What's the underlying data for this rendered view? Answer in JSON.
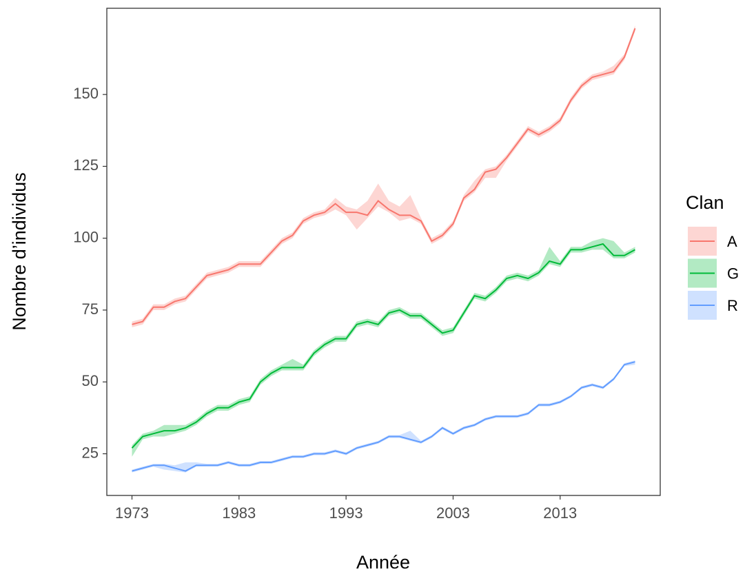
{
  "chart_data": {
    "type": "line_ribbon",
    "x_label": "Année",
    "y_label": "Nombre d’individus",
    "legend_title": "Clan",
    "legend_position": "right",
    "x": [
      1973,
      1974,
      1975,
      1976,
      1977,
      1978,
      1979,
      1980,
      1981,
      1982,
      1983,
      1984,
      1985,
      1986,
      1987,
      1988,
      1989,
      1990,
      1991,
      1992,
      1993,
      1994,
      1995,
      1996,
      1997,
      1998,
      1999,
      2000,
      2001,
      2002,
      2003,
      2004,
      2005,
      2006,
      2007,
      2008,
      2009,
      2010,
      2011,
      2012,
      2013,
      2014,
      2015,
      2016,
      2017,
      2018,
      2019,
      2020
    ],
    "xlim": [
      1970.65,
      2022.35
    ],
    "xticks": [
      1973,
      1983,
      1993,
      2003,
      2013
    ],
    "ylim": [
      10.5,
      180
    ],
    "yticks": [
      25,
      50,
      75,
      100,
      125,
      150
    ],
    "grid": false,
    "series": [
      {
        "name": "A",
        "color": "#F8766D",
        "values": [
          70,
          71,
          76,
          76,
          78,
          79,
          83,
          87,
          88,
          89,
          91,
          91,
          91,
          95,
          99,
          101,
          106,
          108,
          109,
          112,
          109,
          109,
          108,
          113,
          110,
          108,
          108,
          106,
          99,
          101,
          105,
          114,
          117,
          123,
          124,
          128,
          133,
          138,
          136,
          138,
          141,
          148,
          153,
          156,
          157,
          158,
          163,
          173
        ],
        "lower": [
          69,
          70,
          75,
          75,
          77,
          78,
          82,
          86,
          87,
          88,
          90,
          90,
          90,
          94,
          98,
          100,
          105,
          107,
          108,
          110,
          108,
          103,
          107,
          111,
          109,
          106,
          107,
          105,
          98,
          100,
          104,
          113,
          116,
          121,
          121,
          127,
          132,
          137,
          135,
          137,
          140,
          147,
          152,
          155,
          156,
          157,
          162,
          172
        ],
        "upper": [
          71,
          72,
          77,
          77,
          79,
          80,
          84,
          88,
          89,
          90,
          92,
          92,
          92,
          96,
          100,
          102,
          107,
          109,
          110,
          114,
          111,
          110,
          113,
          119,
          113,
          111,
          115,
          107,
          100,
          102,
          106,
          115,
          120,
          124,
          125,
          129,
          134,
          139,
          137,
          139,
          142,
          149,
          154,
          157,
          158,
          160,
          164,
          174
        ]
      },
      {
        "name": "G",
        "color": "#00BA38",
        "values": [
          27,
          31,
          32,
          33,
          33,
          34,
          36,
          39,
          41,
          41,
          43,
          44,
          50,
          53,
          55,
          55,
          55,
          60,
          63,
          65,
          65,
          70,
          71,
          70,
          74,
          75,
          73,
          73,
          70,
          67,
          68,
          74,
          80,
          79,
          82,
          86,
          87,
          86,
          88,
          92,
          91,
          96,
          96,
          97,
          98,
          94,
          94,
          96
        ],
        "lower": [
          24,
          30,
          31,
          31,
          32,
          33,
          35,
          38,
          40,
          40,
          42,
          43,
          49,
          52,
          54,
          54,
          54,
          59,
          62,
          64,
          64,
          69,
          70,
          69,
          73,
          74,
          72,
          72,
          69,
          66,
          67,
          73,
          79,
          78,
          81,
          85,
          86,
          85,
          87,
          91,
          90,
          95,
          95,
          96,
          96,
          93,
          93,
          95
        ],
        "upper": [
          28,
          32,
          33,
          35,
          35,
          35,
          37,
          40,
          42,
          42,
          44,
          45,
          51,
          54,
          56,
          58,
          56,
          61,
          64,
          66,
          66,
          71,
          72,
          71,
          75,
          76,
          74,
          74,
          71,
          68,
          69,
          75,
          81,
          80,
          83,
          87,
          88,
          87,
          89,
          97,
          92,
          97,
          97,
          99,
          100,
          99,
          95,
          97
        ]
      },
      {
        "name": "R",
        "color": "#619CFF",
        "values": [
          19,
          20,
          21,
          21,
          20,
          19,
          21,
          21,
          21,
          22,
          21,
          21,
          22,
          22,
          23,
          24,
          24,
          25,
          25,
          26,
          25,
          27,
          28,
          29,
          31,
          31,
          30,
          29,
          31,
          34,
          32,
          34,
          35,
          37,
          38,
          38,
          38,
          39,
          42,
          42,
          43,
          45,
          48,
          49,
          48,
          51,
          56,
          57
        ],
        "lower": [
          18.5,
          19.5,
          20.5,
          19.5,
          19,
          18.5,
          20.5,
          20.5,
          20.5,
          21.5,
          20.5,
          20.5,
          21.5,
          21.5,
          22.5,
          23.5,
          23.5,
          24.5,
          24.5,
          25.5,
          24.5,
          26.5,
          27.5,
          28.5,
          30.5,
          30.5,
          29.5,
          28.5,
          30.5,
          33.5,
          31.5,
          33.5,
          34.5,
          36.5,
          37.5,
          37.5,
          37.5,
          38.5,
          41.5,
          41.5,
          42.5,
          44.5,
          47.5,
          48.5,
          47.5,
          50.5,
          55.5,
          56
        ],
        "upper": [
          19.5,
          20.5,
          21.5,
          21.5,
          21,
          22,
          22,
          21.5,
          21.5,
          22.5,
          21.5,
          21.5,
          22.5,
          22.5,
          23.5,
          24.5,
          24.5,
          25.5,
          25.5,
          26.5,
          25.5,
          27.5,
          28.5,
          29.5,
          31.5,
          31.5,
          33,
          29.5,
          31.5,
          34.5,
          32.5,
          34.5,
          35.5,
          37.5,
          38.5,
          38.5,
          38.5,
          39.5,
          42.5,
          42.5,
          43.5,
          45.5,
          48.5,
          49.5,
          48.5,
          51.5,
          56.5,
          57.5
        ]
      }
    ]
  }
}
